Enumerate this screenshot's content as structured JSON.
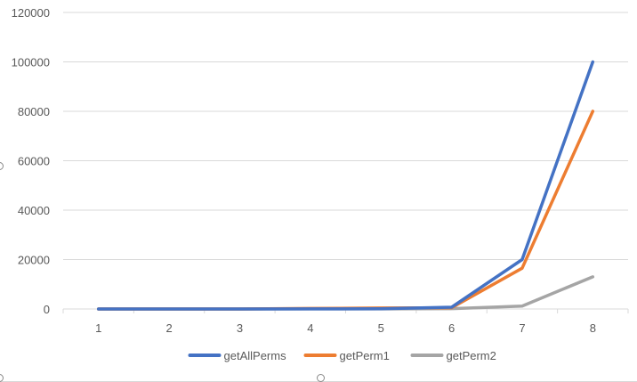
{
  "chart_data": {
    "type": "line",
    "title": "",
    "xlabel": "",
    "ylabel": "",
    "categories": [
      "1",
      "2",
      "3",
      "4",
      "5",
      "6",
      "7",
      "8"
    ],
    "yticks": [
      0,
      20000,
      40000,
      60000,
      80000,
      100000,
      120000
    ],
    "ylim": [
      0,
      120000
    ],
    "grid": "horizontal",
    "legend": "bottom",
    "series": [
      {
        "name": "getAllPerms",
        "color": "#4472c4",
        "values": [
          1,
          2,
          6,
          24,
          120,
          720,
          20000,
          100000
        ]
      },
      {
        "name": "getPerm1",
        "color": "#ed7d31",
        "values": [
          1,
          2,
          6,
          200,
          400,
          500,
          16500,
          80000
        ]
      },
      {
        "name": "getPerm2",
        "color": "#a5a5a5",
        "values": [
          1,
          2,
          6,
          24,
          50,
          150,
          1200,
          13000
        ]
      }
    ]
  }
}
